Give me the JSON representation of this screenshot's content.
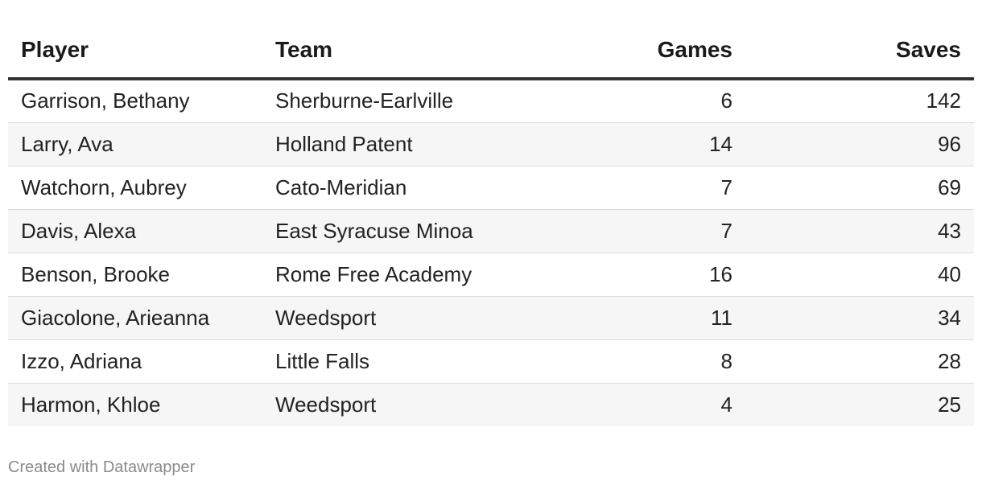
{
  "chart_data": {
    "type": "table",
    "columns": [
      "Player",
      "Team",
      "Games",
      "Saves"
    ],
    "rows": [
      {
        "player": "Garrison, Bethany",
        "team": "Sherburne-Earlville",
        "games": 6,
        "saves": 142
      },
      {
        "player": "Larry, Ava",
        "team": "Holland Patent",
        "games": 14,
        "saves": 96
      },
      {
        "player": "Watchorn, Aubrey",
        "team": "Cato-Meridian",
        "games": 7,
        "saves": 69
      },
      {
        "player": "Davis, Alexa",
        "team": "East Syracuse Minoa",
        "games": 7,
        "saves": 43
      },
      {
        "player": "Benson, Brooke",
        "team": "Rome Free Academy",
        "games": 16,
        "saves": 40
      },
      {
        "player": "Giacolone, Arieanna",
        "team": "Weedsport",
        "games": 11,
        "saves": 34
      },
      {
        "player": "Izzo, Adriana",
        "team": "Little Falls",
        "games": 8,
        "saves": 28
      },
      {
        "player": "Harmon, Khloe",
        "team": "Weedsport",
        "games": 4,
        "saves": 25
      }
    ]
  },
  "footer": {
    "credit": "Created with Datawrapper"
  }
}
